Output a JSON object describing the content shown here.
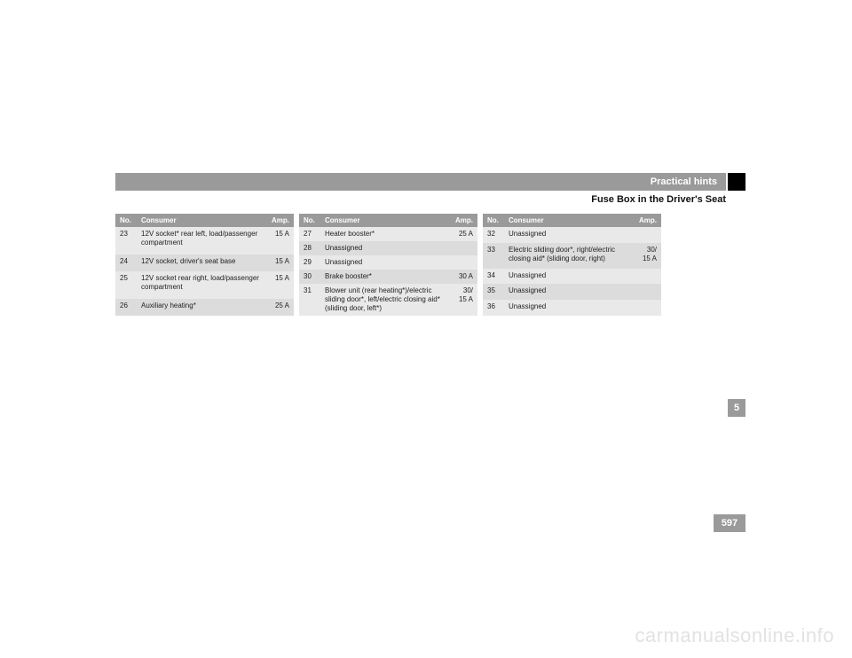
{
  "header": {
    "section": "Practical hints",
    "title": "Fuse Box in the Driver's Seat"
  },
  "side_tab": "5",
  "page_number": "597",
  "watermark": "carmanualsonline.info",
  "columns": {
    "no": "No.",
    "consumer": "Consumer",
    "amp": "Amp."
  },
  "table1": {
    "rows": [
      {
        "no": "23",
        "consumer": "12V socket* rear left, load/passenger compartment",
        "amp": "15 A"
      },
      {
        "no": "24",
        "consumer": "12V socket, driver's seat base",
        "amp": "15 A"
      },
      {
        "no": "25",
        "consumer": "12V socket rear right, load/passenger compartment",
        "amp": "15 A"
      },
      {
        "no": "26",
        "consumer": "Auxiliary heating*",
        "amp": "25 A"
      }
    ]
  },
  "table2": {
    "rows": [
      {
        "no": "27",
        "consumer": "Heater booster*",
        "amp": "25 A"
      },
      {
        "no": "28",
        "consumer": "Unassigned",
        "amp": ""
      },
      {
        "no": "29",
        "consumer": "Unassigned",
        "amp": ""
      },
      {
        "no": "30",
        "consumer": "Brake booster*",
        "amp": "30 A"
      },
      {
        "no": "31",
        "consumer": "Blower unit (rear heating*)/electric sliding door*, left/electric closing aid* (sliding door, left*)",
        "amp": "30/\n15 A"
      }
    ]
  },
  "table3": {
    "rows": [
      {
        "no": "32",
        "consumer": "Unassigned",
        "amp": ""
      },
      {
        "no": "33",
        "consumer": "Electric sliding door*, right/electric closing aid* (sliding door, right)",
        "amp": "30/\n15 A"
      },
      {
        "no": "34",
        "consumer": "Unassigned",
        "amp": ""
      },
      {
        "no": "35",
        "consumer": "Unassigned",
        "amp": ""
      },
      {
        "no": "36",
        "consumer": "Unassigned",
        "amp": ""
      }
    ]
  },
  "style": {
    "header_bg": "#9a9a9a",
    "header_fg": "#ffffff",
    "row_alt_a": "#e9e9e9",
    "row_alt_b": "#dcdcdc",
    "text_color": "#222222",
    "watermark_color": "#e2e2e2",
    "font_size_header": 11,
    "font_size_table": 8
  }
}
